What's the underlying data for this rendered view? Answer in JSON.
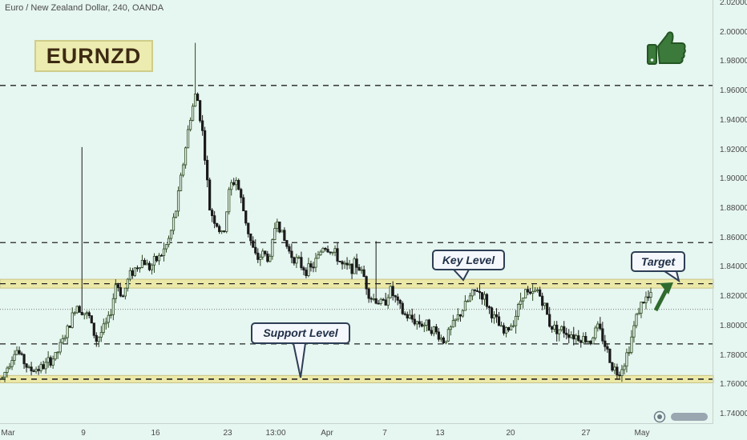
{
  "header": {
    "symbol_info": "Euro / New Zealand Dollar, 240, OANDA"
  },
  "badge": {
    "ticker": "EURNZD"
  },
  "icons": {
    "thumbs_up": "thumbs-up-icon",
    "tv_logo": "tradingview-logo-icon"
  },
  "colors": {
    "background": "#e6f6f0",
    "up": "#2f4a22",
    "down": "#1a1a1a",
    "zone_fill": "#ece9a8",
    "zone_border": "#c9c487",
    "dash": "#222222",
    "thumb": "#3b7a3a",
    "arrow": "#2f6b2e"
  },
  "callouts": {
    "key_level": "Key Level",
    "support_level": "Support Level",
    "target": "Target"
  },
  "chart_data": {
    "type": "candlestick",
    "title": "Euro / New Zealand Dollar, 240, OANDA",
    "ylim": [
      1.74,
      2.02
    ],
    "y_ticks": [
      "2.02000",
      "2.00000",
      "1.98000",
      "1.96000",
      "1.94000",
      "1.92000",
      "1.90000",
      "1.88000",
      "1.86000",
      "1.84000",
      "1.82000",
      "1.80000",
      "1.78000",
      "1.76000",
      "1.74000"
    ],
    "x_ticks": [
      "Mar",
      "9",
      "16",
      "23",
      "13:00",
      "Apr",
      "7",
      "13",
      "20",
      "27",
      "May"
    ],
    "resistance_dashed_levels": [
      1.964,
      1.857,
      1.788,
      1.764
    ],
    "key_level_zone": [
      1.826,
      1.832
    ],
    "support_zone": [
      1.7615,
      1.7665
    ],
    "current_price_line": 1.8115,
    "path": [
      [
        0,
        1.765
      ],
      [
        2,
        1.785
      ],
      [
        4,
        1.77
      ],
      [
        6,
        1.772
      ],
      [
        8,
        1.78
      ],
      [
        9,
        1.79
      ],
      [
        10,
        1.8
      ],
      [
        11,
        1.815
      ],
      [
        13,
        1.806
      ],
      [
        14,
        1.79
      ],
      [
        16,
        1.805
      ],
      [
        17,
        1.83
      ],
      [
        18,
        1.82
      ],
      [
        19,
        1.835
      ],
      [
        21,
        1.845
      ],
      [
        22,
        1.84
      ],
      [
        24,
        1.85
      ],
      [
        25,
        1.86
      ],
      [
        26,
        1.88
      ],
      [
        27,
        1.91
      ],
      [
        28,
        1.94
      ],
      [
        29,
        1.96
      ],
      [
        30,
        1.93
      ],
      [
        31,
        1.88
      ],
      [
        32,
        1.87
      ],
      [
        33,
        1.86
      ],
      [
        34,
        1.895
      ],
      [
        35,
        1.9
      ],
      [
        36,
        1.88
      ],
      [
        37,
        1.86
      ],
      [
        38,
        1.845
      ],
      [
        39,
        1.85
      ],
      [
        40,
        1.845
      ],
      [
        41,
        1.875
      ],
      [
        42,
        1.86
      ],
      [
        43,
        1.85
      ],
      [
        44,
        1.845
      ],
      [
        45,
        1.84
      ],
      [
        46,
        1.838
      ],
      [
        47,
        1.845
      ],
      [
        48,
        1.855
      ],
      [
        49,
        1.852
      ],
      [
        50,
        1.848
      ],
      [
        51,
        1.84
      ],
      [
        52,
        1.84
      ],
      [
        53,
        1.842
      ],
      [
        54,
        1.835
      ],
      [
        55,
        1.82
      ],
      [
        57,
        1.815
      ],
      [
        58,
        1.825
      ],
      [
        60,
        1.808
      ],
      [
        62,
        1.803
      ],
      [
        64,
        1.8
      ],
      [
        66,
        1.79
      ],
      [
        68,
        1.805
      ],
      [
        70,
        1.82
      ],
      [
        71,
        1.825
      ],
      [
        72,
        1.82
      ],
      [
        73,
        1.81
      ],
      [
        75,
        1.795
      ],
      [
        76,
        1.8
      ],
      [
        77,
        1.81
      ],
      [
        78,
        1.825
      ],
      [
        79,
        1.82
      ],
      [
        80,
        1.825
      ],
      [
        81,
        1.815
      ],
      [
        82,
        1.8
      ],
      [
        84,
        1.797
      ],
      [
        86,
        1.793
      ],
      [
        88,
        1.79
      ],
      [
        89,
        1.8
      ],
      [
        90,
        1.79
      ],
      [
        91,
        1.775
      ],
      [
        92,
        1.768
      ],
      [
        93,
        1.775
      ],
      [
        94,
        1.79
      ],
      [
        95,
        1.81
      ],
      [
        96,
        1.818
      ],
      [
        97,
        1.82
      ]
    ],
    "spikes": [
      [
        12,
        1.922
      ],
      [
        29,
        1.993
      ],
      [
        56,
        1.858
      ]
    ]
  }
}
